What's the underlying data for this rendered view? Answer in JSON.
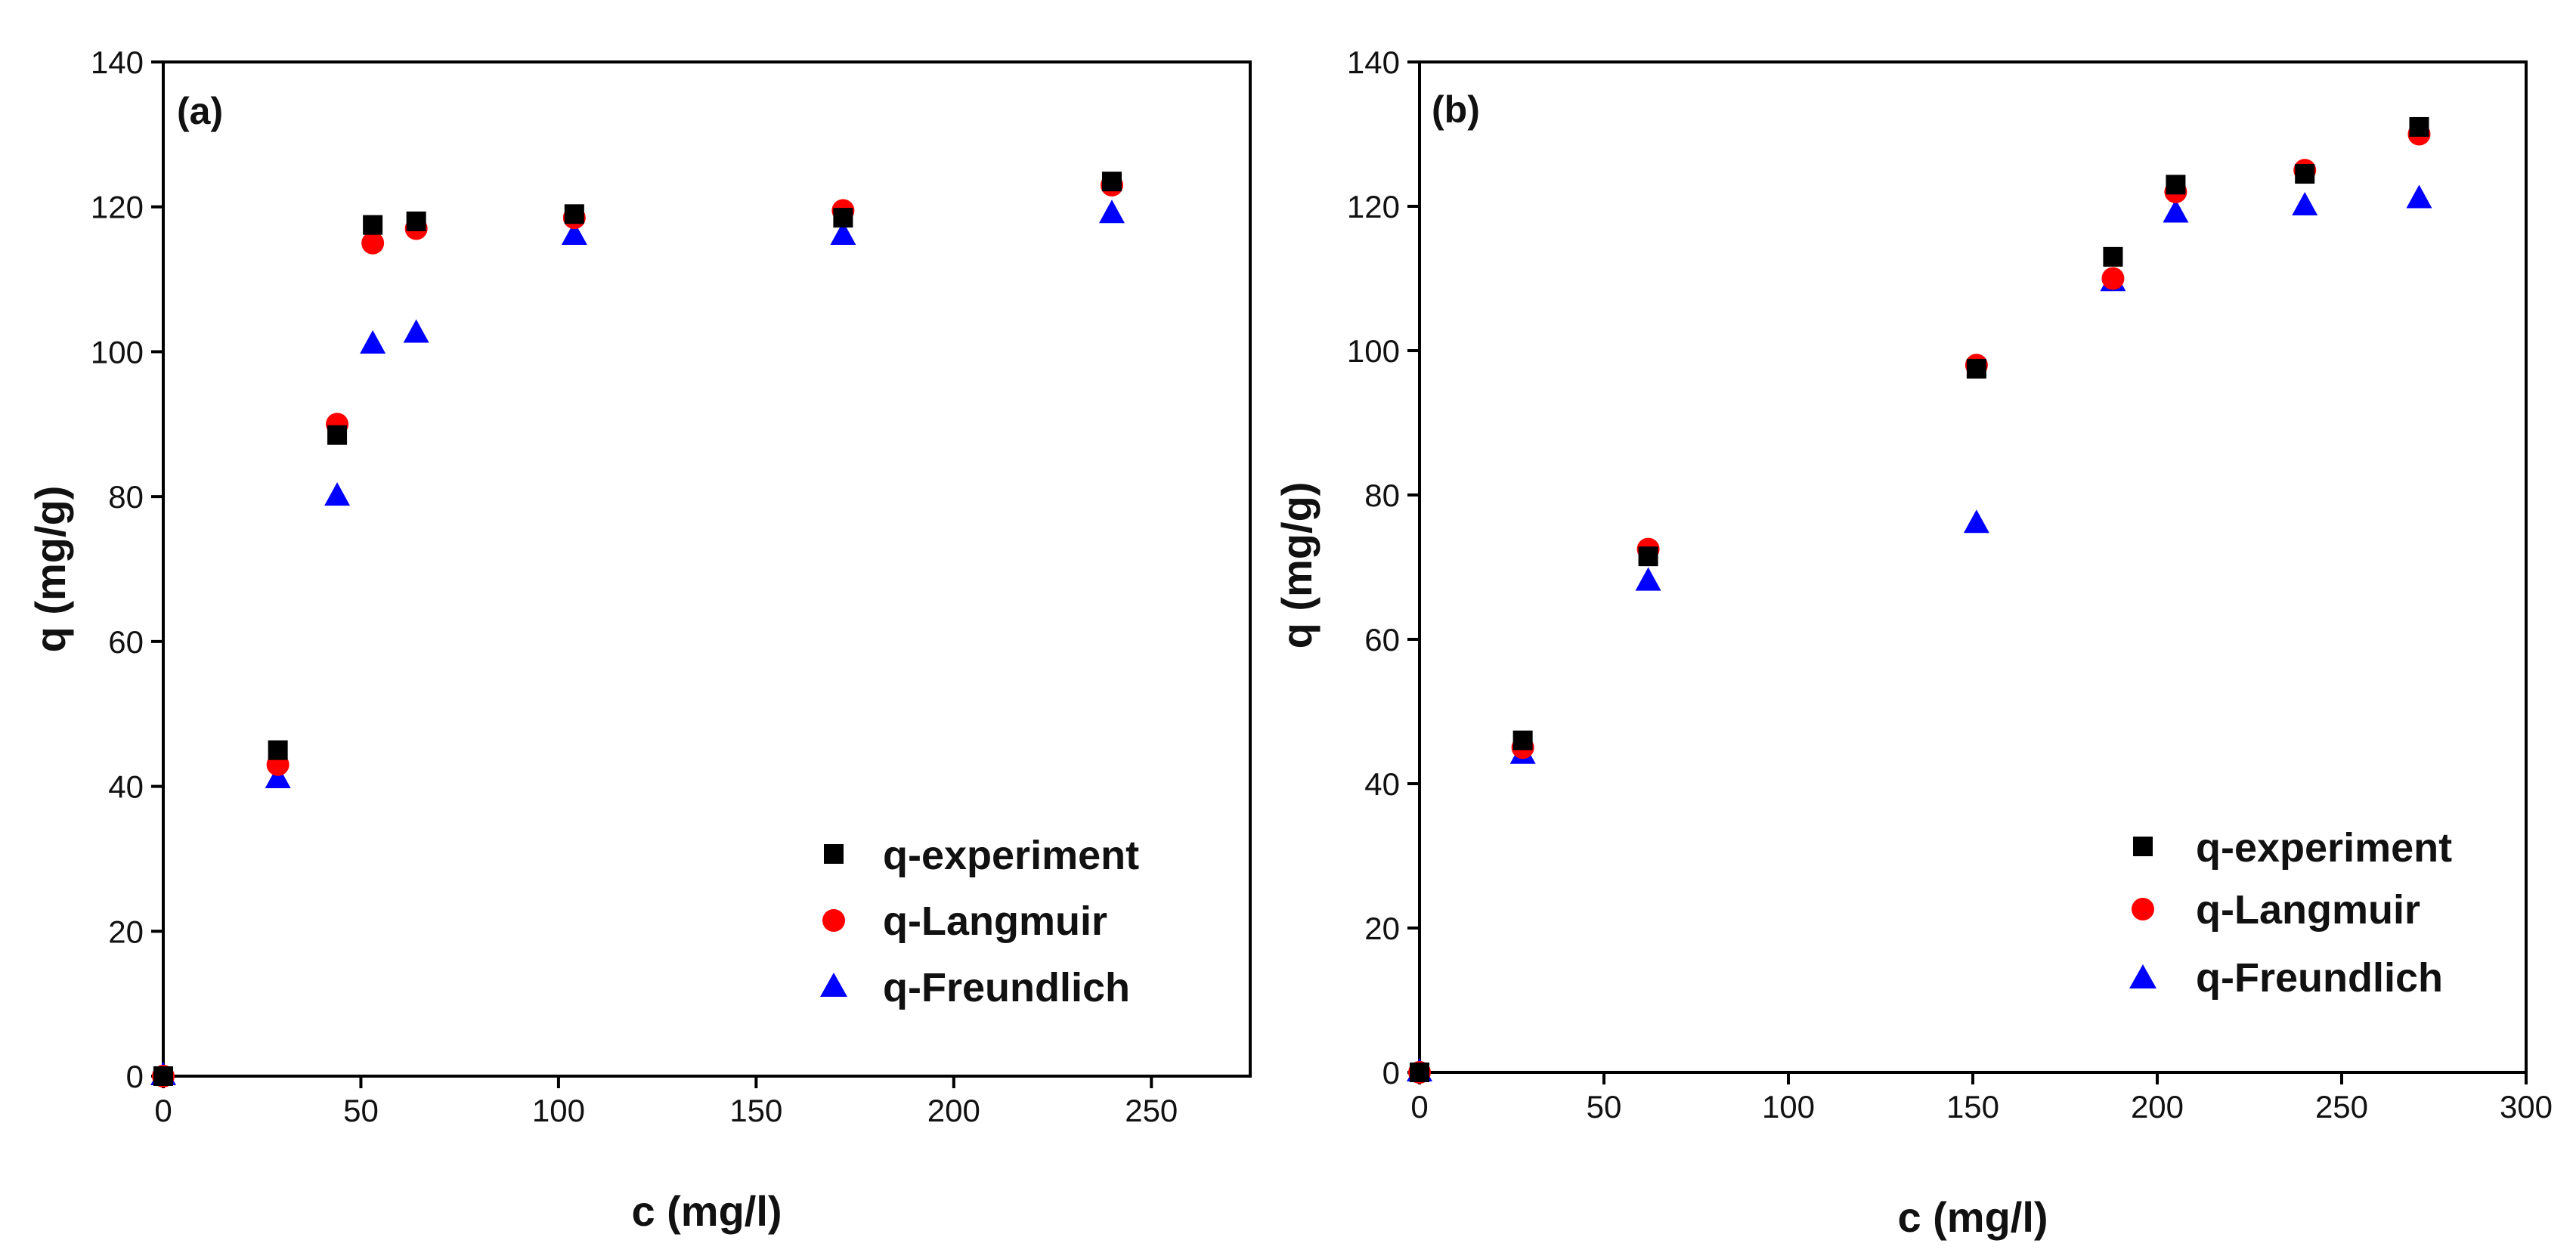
{
  "figure_labels": {
    "panel_a": "(a)",
    "panel_b": "(b)"
  },
  "colors": {
    "experiment": "#000000",
    "langmuir": "#ff0000",
    "freundlich": "#0000ff"
  },
  "chart_data": [
    {
      "type": "scatter",
      "panel": "(a)",
      "xlabel": "c (mg/l)",
      "ylabel": "q (mg/g)",
      "xlim": [
        0,
        275
      ],
      "ylim": [
        0,
        140
      ],
      "xticks": [
        0,
        50,
        100,
        150,
        200,
        250
      ],
      "yticks": [
        0,
        20,
        40,
        60,
        80,
        100,
        120,
        140
      ],
      "legend_position": "bottom-right",
      "series": [
        {
          "name": "q-experiment",
          "marker": "square",
          "color": "#000000",
          "points": [
            [
              0,
              0
            ],
            [
              29,
              45
            ],
            [
              44,
              88.5
            ],
            [
              53,
              117.5
            ],
            [
              64,
              118
            ],
            [
              104,
              119
            ],
            [
              172,
              118.5
            ],
            [
              240,
              123.5
            ]
          ]
        },
        {
          "name": "q-Langmuir",
          "marker": "circle",
          "color": "#ff0000",
          "points": [
            [
              0,
              0
            ],
            [
              29,
              43
            ],
            [
              44,
              90
            ],
            [
              53,
              115
            ],
            [
              64,
              117
            ],
            [
              104,
              118.5
            ],
            [
              172,
              119.5
            ],
            [
              240,
              123
            ]
          ]
        },
        {
          "name": "q-Freundlich",
          "marker": "triangle",
          "color": "#0000ff",
          "points": [
            [
              0,
              0
            ],
            [
              29,
              41
            ],
            [
              44,
              80
            ],
            [
              53,
              101
            ],
            [
              64,
              102.5
            ],
            [
              104,
              116
            ],
            [
              172,
              116
            ],
            [
              240,
              119
            ]
          ]
        }
      ]
    },
    {
      "type": "scatter",
      "panel": "(b)",
      "xlabel": "c (mg/l)",
      "ylabel": "q (mg/g)",
      "xlim": [
        0,
        300
      ],
      "ylim": [
        0,
        140
      ],
      "xticks": [
        0,
        50,
        100,
        150,
        200,
        250,
        300
      ],
      "yticks": [
        0,
        20,
        40,
        60,
        80,
        100,
        120,
        140
      ],
      "legend_position": "bottom-right",
      "series": [
        {
          "name": "q-experiment",
          "marker": "square",
          "color": "#000000",
          "points": [
            [
              0,
              0
            ],
            [
              28,
              46
            ],
            [
              62,
              71.5
            ],
            [
              151,
              97.5
            ],
            [
              188,
              113
            ],
            [
              205,
              123
            ],
            [
              240,
              124.5
            ],
            [
              271,
              131
            ]
          ]
        },
        {
          "name": "q-Langmuir",
          "marker": "circle",
          "color": "#ff0000",
          "points": [
            [
              0,
              0
            ],
            [
              28,
              45
            ],
            [
              62,
              72.5
            ],
            [
              151,
              98
            ],
            [
              188,
              110
            ],
            [
              205,
              122
            ],
            [
              240,
              125
            ],
            [
              271,
              130
            ]
          ]
        },
        {
          "name": "q-Freundlich",
          "marker": "triangle",
          "color": "#0000ff",
          "points": [
            [
              0,
              0
            ],
            [
              28,
              44
            ],
            [
              62,
              68
            ],
            [
              151,
              76
            ],
            [
              188,
              109.5
            ],
            [
              205,
              119
            ],
            [
              240,
              120
            ],
            [
              271,
              121
            ]
          ]
        }
      ]
    }
  ]
}
